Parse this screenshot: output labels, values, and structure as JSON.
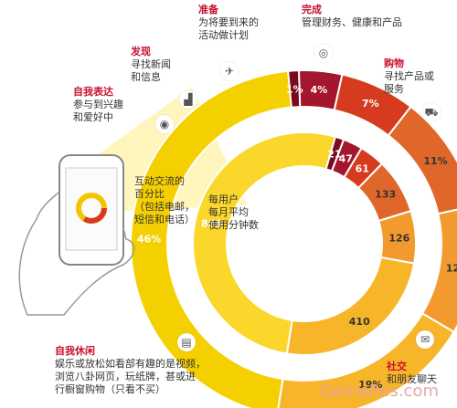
{
  "chart_data": [
    {
      "type": "pie",
      "subtype": "donut-outer",
      "title": "互动交流的百分比(包括电邮,短信和电话)",
      "unit": "%",
      "slices": [
        {
          "label": "自我休闲",
          "value": 46,
          "color": "#f5d000"
        },
        {
          "label": "自我表达",
          "value": 1,
          "color": "#7a0a1d"
        },
        {
          "label": "发现",
          "value": 4,
          "color": "#a4162e"
        },
        {
          "label": "准备",
          "value": 7,
          "color": "#d63b1f"
        },
        {
          "label": "完成",
          "value": 11,
          "color": "#e0672a"
        },
        {
          "label": "购物",
          "value": 12,
          "color": "#f29a2e"
        },
        {
          "label": "社交",
          "value": 19,
          "color": "#f7b52a"
        }
      ]
    },
    {
      "type": "pie",
      "subtype": "donut-inner",
      "title": "每用户每月平均使用分钟数",
      "unit": "分钟",
      "slices": [
        {
          "label": "自我休闲",
          "value": 864,
          "color": "#fad72a"
        },
        {
          "label": "自我表达",
          "value": 21,
          "color": "#7a0a1d"
        },
        {
          "label": "发现",
          "value": 47,
          "color": "#a4162e"
        },
        {
          "label": "准备",
          "value": 61,
          "color": "#d63b1f"
        },
        {
          "label": "完成",
          "value": 133,
          "color": "#e0672a"
        },
        {
          "label": "购物",
          "value": 126,
          "color": "#f29a2e"
        },
        {
          "label": "社交",
          "value": 410,
          "color": "#f7b52a"
        }
      ]
    }
  ],
  "labels": {
    "prepare": {
      "title": "准备",
      "desc1": "为将要到来的",
      "desc2": "活动做计划"
    },
    "complete": {
      "title": "完成",
      "desc1": "管理财务、健康和产品",
      "desc2": ""
    },
    "discover": {
      "title": "发现",
      "desc1": "寻找新闻",
      "desc2": "和信息"
    },
    "shop": {
      "title": "购物",
      "desc1": "寻找产品或",
      "desc2": "服务"
    },
    "express": {
      "title": "自我表达",
      "desc1": "参与到兴趣",
      "desc2": "和爱好中"
    },
    "leisure": {
      "title": "自我休闲",
      "desc1": "娱乐或放松如看部有趣的是视频，",
      "desc2": "浏览八卦网页，玩纸牌，甚或进",
      "desc3": "行橱窗购物（只看不买）"
    },
    "social": {
      "title": "社交",
      "desc1": "和朋友聊天",
      "desc2": ""
    }
  },
  "center": {
    "outer_note1": "互动交流的",
    "outer_note2": "百分比",
    "outer_note3": "（包括电邮，",
    "outer_note4": "短信和电话）",
    "inner_note1": "每用户",
    "inner_note2": "每月平均",
    "inner_note3": "使用分钟数"
  },
  "watermark": "GameRes.com",
  "icons": [
    "camera-icon",
    "signal-icon",
    "airplane-icon",
    "ring-icon",
    "cart-icon",
    "chat-icon",
    "film-icon"
  ]
}
